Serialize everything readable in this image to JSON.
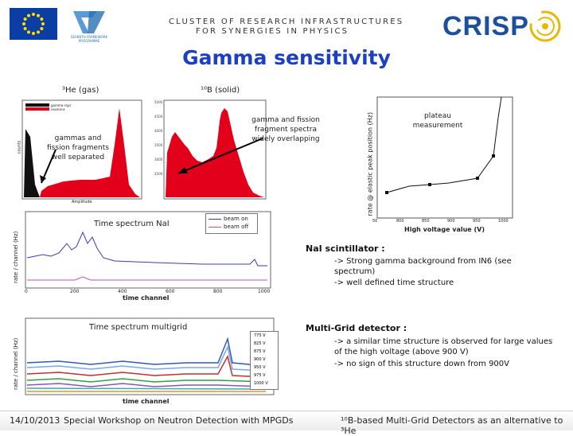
{
  "header": {
    "line1": "CLUSTER OF RESEARCH INFRASTRUCTURES",
    "line2": "FOR SYNERGIES IN PHYSICS",
    "fp7_text": "SEVENTH FRAMEWORK PROGRAMME",
    "crisp_logo": "CRISP"
  },
  "slide": {
    "title": "Gamma sensitivity",
    "label_he": "³He (gas)",
    "label_b": "¹⁰B (solid)",
    "he_annotation": "gammas and fission fragments well separated",
    "b_annotation": "gamma and fission fragment spectra widely overlapping",
    "plateau_annotation": "plateau measurement",
    "nai_spectrum_label": "Time spectrum NaI",
    "multigrid_spectrum_label": "Time spectrum multigrid"
  },
  "plots": {
    "he": {
      "legend": [
        "gamma-rays",
        "neutrons"
      ],
      "xlabel": "Amplitude",
      "ylabel": "counts"
    },
    "plateau": {
      "ylabel": "rate @ elastic peak position (Hz)",
      "xlabel": "High voltage value (V)",
      "xticks": [
        "50",
        "800",
        "850",
        "900",
        "950",
        "1000"
      ]
    },
    "nai": {
      "ylabel": "rate / channel (Hz)",
      "xlabel": "time channel",
      "legend": [
        "beam on",
        "beam off"
      ],
      "xticks": [
        "0",
        "200",
        "400",
        "600",
        "800",
        "1000"
      ]
    },
    "multigrid": {
      "ylabel": "rate / channel (Hz)",
      "xlabel": "time channel",
      "legend": [
        "775 V",
        "825 V",
        "875 V",
        "900 V",
        "950 V",
        "975 V",
        "1000 V"
      ]
    }
  },
  "notes": {
    "nai_heading": "NaI scintillator :",
    "nai_points": [
      "-> Strong gamma background from IN6 (see spectrum)",
      "-> well defined time structure"
    ],
    "mg_heading": "Multi-Grid detector :",
    "mg_points": [
      "-> a similar time structure is observed for large values of the high voltage (above 900 V)",
      "-> no sign of this structure down from 900V"
    ]
  },
  "footer": {
    "date": "14/10/2013",
    "event": "Special Workshop on Neutron Detection with MPGDs",
    "subject": "¹⁰B-based Multi-Grid Detectors as an alternative to ³He"
  },
  "colors": {
    "title": "#1d3fc4",
    "eu_blue": "#0b3ea3",
    "eu_star": "#ffdd00",
    "crisp_blue": "#1c4f9c",
    "fill_red": "#e3001b",
    "beam_on": "#3b3bb0",
    "beam_off": "#c050b0"
  }
}
